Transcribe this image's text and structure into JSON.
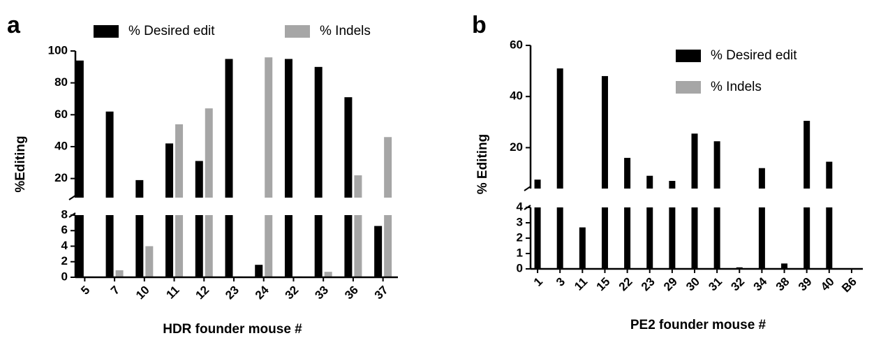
{
  "chart_data": [
    {
      "type": "broken-bar",
      "panel_label": "a",
      "y_label": "%Editing",
      "x_label": "HDR founder mouse #",
      "categories": [
        "5",
        "7",
        "10",
        "11",
        "12",
        "23",
        "24",
        "32",
        "33",
        "36",
        "37"
      ],
      "series": [
        {
          "name": "% Desired edit",
          "color": "#000000",
          "values": [
            94,
            62,
            19,
            42,
            31,
            95,
            1.6,
            95,
            90,
            71,
            6.6
          ]
        },
        {
          "name": "% Indels",
          "color": "#a6a6a6",
          "values": [
            0.1,
            0.9,
            4,
            54,
            64,
            0.1,
            96,
            0.1,
            0.7,
            22,
            46
          ]
        }
      ],
      "segments": [
        {
          "ylim": [
            0,
            8
          ],
          "yticks": [
            0,
            2,
            4,
            6,
            8
          ]
        },
        {
          "ylim": [
            8,
            100
          ],
          "yticks": [
            20,
            40,
            60,
            80,
            100
          ]
        }
      ],
      "legend": "top"
    },
    {
      "type": "broken-bar",
      "panel_label": "b",
      "y_label": "% Editing",
      "x_label": "PE2 founder mouse #",
      "categories": [
        "1",
        "3",
        "11",
        "15",
        "22",
        "23",
        "29",
        "30",
        "31",
        "32",
        "34",
        "38",
        "39",
        "40",
        "B6"
      ],
      "series": [
        {
          "name": "% Desired edit",
          "color": "#000000",
          "values": [
            7.5,
            51,
            2.7,
            48,
            16,
            9,
            7,
            25.5,
            22.5,
            0.1,
            12,
            0.35,
            30.5,
            14.5,
            0
          ]
        },
        {
          "name": "% Indels",
          "color": "#a6a6a6",
          "values": [
            0,
            0,
            0,
            0,
            0,
            0,
            0,
            0,
            0,
            0,
            0,
            0,
            0,
            0,
            0
          ]
        }
      ],
      "segments": [
        {
          "ylim": [
            0,
            4
          ],
          "yticks": [
            0,
            1,
            2,
            3,
            4
          ]
        },
        {
          "ylim": [
            4,
            60
          ],
          "yticks": [
            20,
            40,
            60
          ]
        }
      ],
      "legend": "upper right"
    }
  ]
}
